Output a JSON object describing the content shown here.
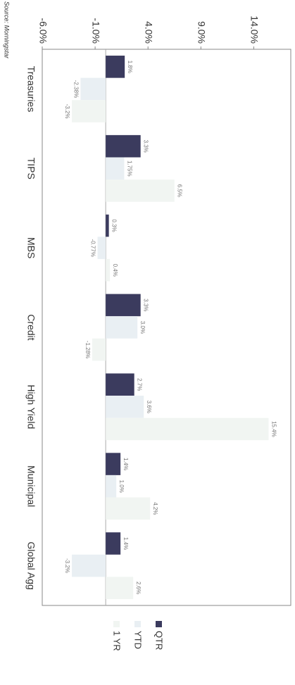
{
  "chart_data": {
    "type": "bar",
    "source": "Source: Morningstar",
    "categories": [
      "Treasuries",
      "TIPS",
      "MBS",
      "Credit",
      "High Yield",
      "Municipal",
      "Global Agg"
    ],
    "series": [
      {
        "name": "QTR",
        "color": "#3b3b5e",
        "values": [
          1.8,
          3.3,
          0.3,
          3.3,
          2.7,
          1.4,
          1.4
        ],
        "value_labels": [
          "1.8%",
          "3.3%",
          "0.3%",
          "3.3%",
          "2.7%",
          "1.4%",
          "1.4%"
        ]
      },
      {
        "name": "YTD",
        "color": "#e9eff3",
        "values": [
          -2.38,
          1.75,
          -0.77,
          3.0,
          3.6,
          1.0,
          -3.2
        ],
        "value_labels": [
          "-2.38%",
          "1.75%",
          "-0.77%",
          "3.0%",
          "3.6%",
          "1.0%",
          "-3.2%"
        ]
      },
      {
        "name": "1 YR",
        "color": "#f1f5f2",
        "values": [
          -3.2,
          6.5,
          0.4,
          -1.28,
          15.4,
          4.2,
          2.6
        ],
        "value_labels": [
          "-3.2%",
          "6.5%",
          "0.4%",
          "-1.28%",
          "15.4%",
          "4.2%",
          "2.6%"
        ]
      }
    ],
    "ylim": [
      -6,
      17.5
    ],
    "yticks": [
      {
        "value": -6,
        "label": "-6.0%"
      },
      {
        "value": -1,
        "label": "-1.0%"
      },
      {
        "value": 4,
        "label": "4.0%"
      },
      {
        "value": 9,
        "label": "9.0%"
      },
      {
        "value": 14,
        "label": "14.0%"
      }
    ],
    "legend": "bottom-right"
  }
}
